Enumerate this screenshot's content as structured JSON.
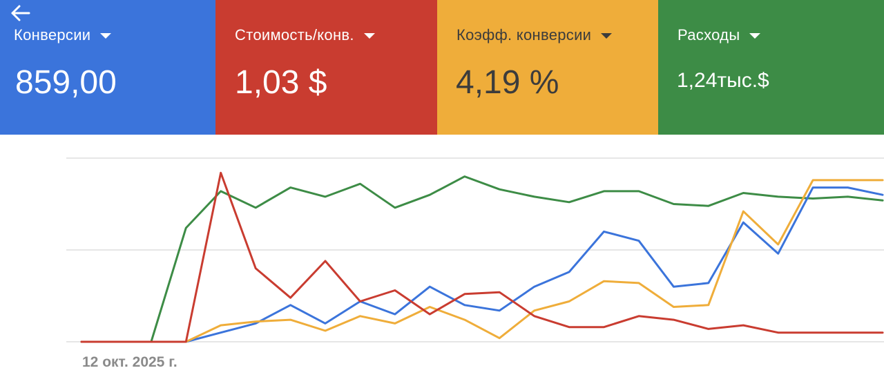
{
  "metrics": [
    {
      "label": "Конверсии",
      "value": "859,00",
      "color": "#3b74db"
    },
    {
      "label": "Стоимость/конв.",
      "value": "1,03 $",
      "color": "#c93c30"
    },
    {
      "label": "Коэфф. конверсии",
      "value": "4,19 %",
      "color": "#efad3a"
    },
    {
      "label": "Расходы",
      "value": "1,24тыс.$",
      "color": "#3d8c46"
    }
  ],
  "chart_data": {
    "type": "line",
    "xlabel": "",
    "ylabel": "",
    "grid": true,
    "x_start_label": "12 окт. 2025 г.",
    "ylim": [
      0,
      100
    ],
    "x": [
      0,
      1,
      2,
      3,
      4,
      5,
      6,
      7,
      8,
      9,
      10,
      11,
      12,
      13,
      14,
      15,
      16,
      17,
      18,
      19,
      20,
      21,
      22,
      23
    ],
    "series": [
      {
        "key": "conversions",
        "color": "#3b74db",
        "values": [
          0,
          0,
          0,
          0,
          5,
          10,
          20,
          10,
          22,
          15,
          30,
          20,
          17,
          30,
          38,
          60,
          55,
          30,
          32,
          65,
          48,
          84,
          84,
          80
        ]
      },
      {
        "key": "cost_per_conv",
        "color": "#c93c30",
        "values": [
          0,
          0,
          0,
          0,
          92,
          40,
          24,
          44,
          22,
          28,
          15,
          26,
          27,
          14,
          8,
          8,
          14,
          12,
          7,
          9,
          5,
          5,
          5,
          5
        ]
      },
      {
        "key": "conv_rate",
        "color": "#efad3a",
        "values": [
          0,
          0,
          0,
          0,
          9,
          11,
          12,
          6,
          14,
          10,
          19,
          12,
          2,
          17,
          22,
          33,
          32,
          19,
          20,
          71,
          53,
          88,
          88,
          88
        ]
      },
      {
        "key": "cost",
        "color": "#3d8c46",
        "values": [
          0,
          0,
          0,
          62,
          82,
          73,
          84,
          79,
          86,
          73,
          80,
          90,
          83,
          79,
          76,
          82,
          82,
          75,
          74,
          81,
          79,
          78,
          79,
          77
        ]
      }
    ]
  }
}
